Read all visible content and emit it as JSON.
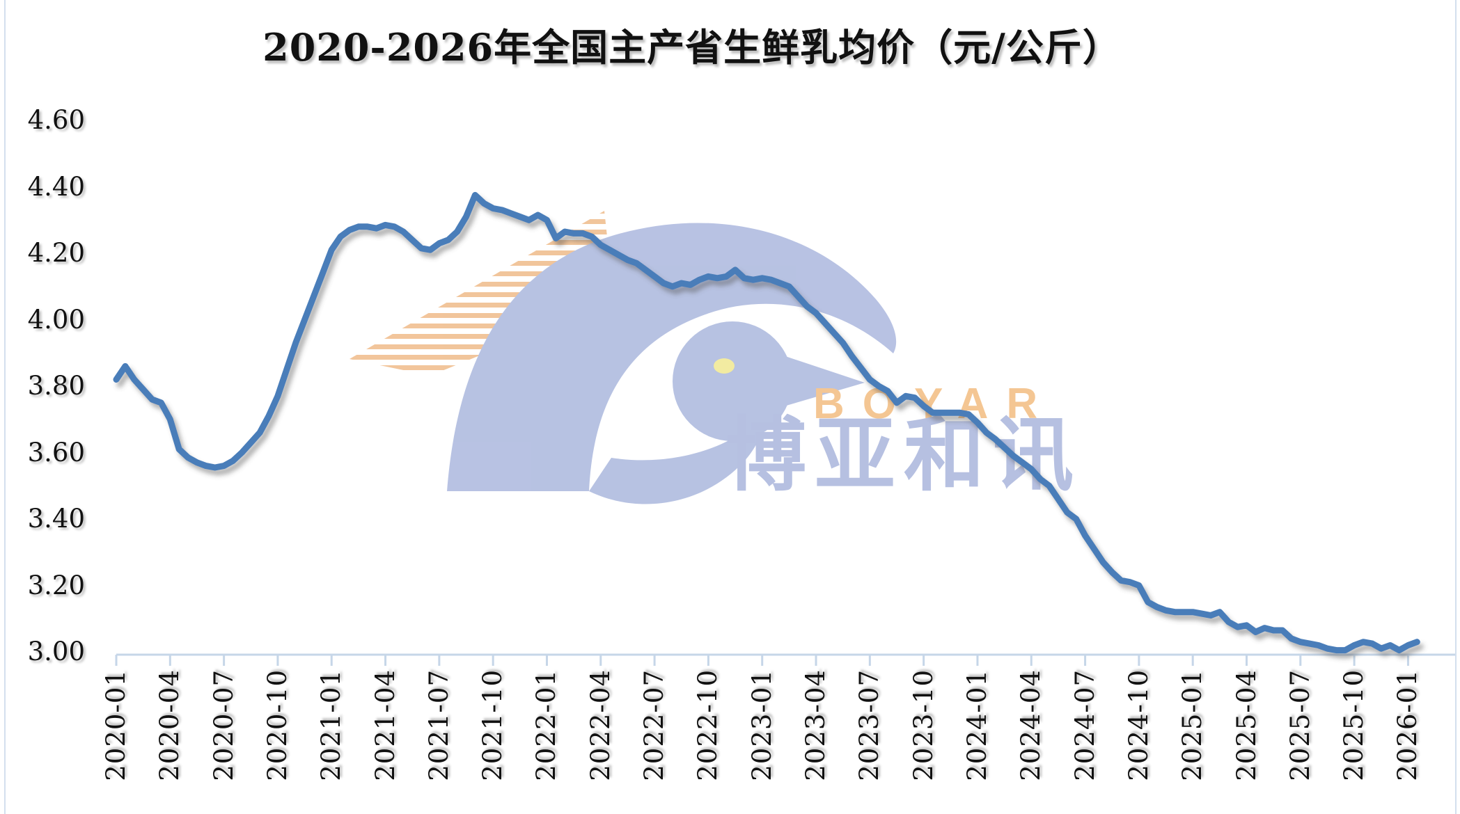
{
  "page": {
    "background": "#ffffff"
  },
  "chart_data": {
    "type": "line",
    "title": "2020-2026年全国主产省生鲜乳均价（元/公斤）",
    "unit": "元/公斤",
    "grid": false,
    "legend": "none",
    "y_axis": {
      "min": 3.0,
      "max": 4.6,
      "step": 0.2,
      "tick_labels": [
        "3.00",
        "3.20",
        "3.40",
        "3.60",
        "3.80",
        "4.00",
        "4.20",
        "4.40",
        "4.60"
      ]
    },
    "x_axis": {
      "months_between_ticks": 3,
      "tick_labels": [
        "2020-01",
        "2020-04",
        "2020-07",
        "2020-10",
        "2021-01",
        "2021-04",
        "2021-07",
        "2021-10",
        "2022-01",
        "2022-04",
        "2022-07",
        "2022-10",
        "2023-01",
        "2023-04",
        "2023-07",
        "2023-10",
        "2024-01",
        "2024-04",
        "2024-07",
        "2024-10",
        "2025-01",
        "2025-04",
        "2025-07",
        "2025-10",
        "2026-01"
      ]
    },
    "series": [
      {
        "name": "全国主产省生鲜乳均价",
        "color": "#4a7db9",
        "x_start_month": "2020-01",
        "x_step_months": 0.5,
        "values": [
          3.82,
          3.86,
          3.82,
          3.79,
          3.76,
          3.75,
          3.7,
          3.61,
          3.585,
          3.57,
          3.56,
          3.555,
          3.56,
          3.575,
          3.6,
          3.63,
          3.66,
          3.71,
          3.77,
          3.85,
          3.93,
          4.0,
          4.07,
          4.14,
          4.21,
          4.25,
          4.27,
          4.28,
          4.28,
          4.275,
          4.285,
          4.28,
          4.265,
          4.24,
          4.215,
          4.21,
          4.23,
          4.24,
          4.265,
          4.31,
          4.375,
          4.35,
          4.335,
          4.33,
          4.32,
          4.31,
          4.3,
          4.315,
          4.3,
          4.245,
          4.265,
          4.26,
          4.26,
          4.25,
          4.225,
          4.21,
          4.195,
          4.18,
          4.17,
          4.15,
          4.13,
          4.11,
          4.1,
          4.11,
          4.105,
          4.12,
          4.13,
          4.125,
          4.13,
          4.15,
          4.125,
          4.12,
          4.125,
          4.12,
          4.11,
          4.1,
          4.07,
          4.04,
          4.02,
          3.99,
          3.96,
          3.93,
          3.89,
          3.855,
          3.82,
          3.8,
          3.785,
          3.75,
          3.77,
          3.765,
          3.74,
          3.72,
          3.72,
          3.72,
          3.72,
          3.715,
          3.69,
          3.66,
          3.64,
          3.615,
          3.59,
          3.57,
          3.55,
          3.52,
          3.5,
          3.46,
          3.42,
          3.4,
          3.35,
          3.31,
          3.27,
          3.24,
          3.215,
          3.21,
          3.2,
          3.15,
          3.135,
          3.125,
          3.12,
          3.12,
          3.12,
          3.115,
          3.11,
          3.12,
          3.09,
          3.075,
          3.08,
          3.06,
          3.072,
          3.065,
          3.065,
          3.04,
          3.03,
          3.025,
          3.02,
          3.01,
          3.005,
          3.005,
          3.02,
          3.03,
          3.025,
          3.01,
          3.02,
          3.005,
          3.02,
          3.03
        ]
      }
    ]
  },
  "watermark": {
    "brand_latin": "BOYAR",
    "brand_cn": "博亚和讯",
    "orange": "#f2c296",
    "periwinkle": "#b4bfe1",
    "eye_color": "#f2ea9c"
  }
}
